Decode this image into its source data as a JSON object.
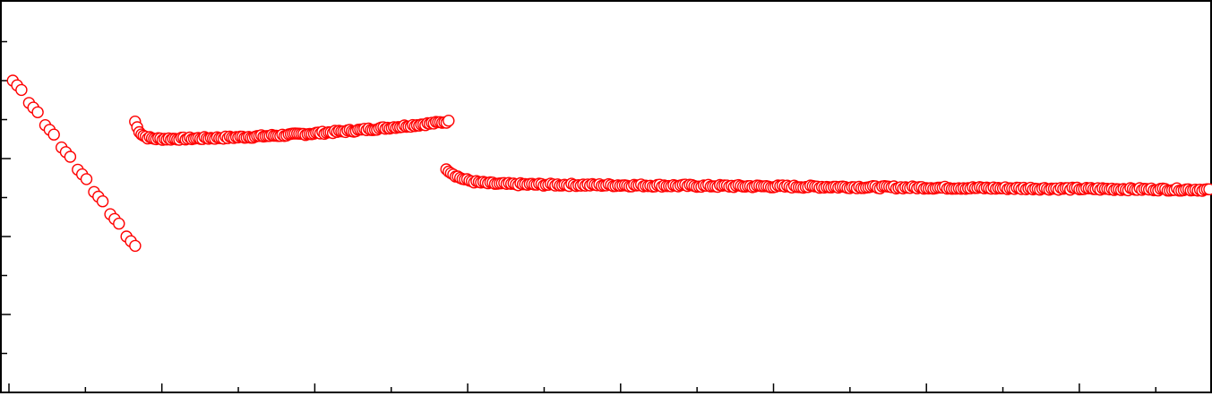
{
  "chart_data": {
    "type": "scatter",
    "title": "",
    "xlabel": "",
    "ylabel": "",
    "xlim": [
      0,
      1570
    ],
    "ylim": [
      0,
      10
    ],
    "grid": false,
    "marker": "open-circle",
    "colors": {
      "marker_stroke": "#ff0000",
      "marker_fill": "#ffffff",
      "axis": "#000000"
    },
    "series": [
      {
        "segments": [
          {
            "kind": "staircase",
            "x_start": 5,
            "x_end": 175,
            "y_start": 8.0,
            "y_end": 4.0,
            "steps": 8,
            "points_per_step": 3
          },
          {
            "kind": "curve",
            "x_start": 165,
            "x_end": 575,
            "points": 150,
            "y_start": 6.95,
            "y_min": 6.5,
            "y_end": 6.95
          },
          {
            "kind": "curve",
            "x_start": 572,
            "x_end": 1570,
            "points": 330,
            "y_start": 5.75,
            "y_plateau": 5.35,
            "y_end": 5.2
          }
        ]
      }
    ]
  }
}
